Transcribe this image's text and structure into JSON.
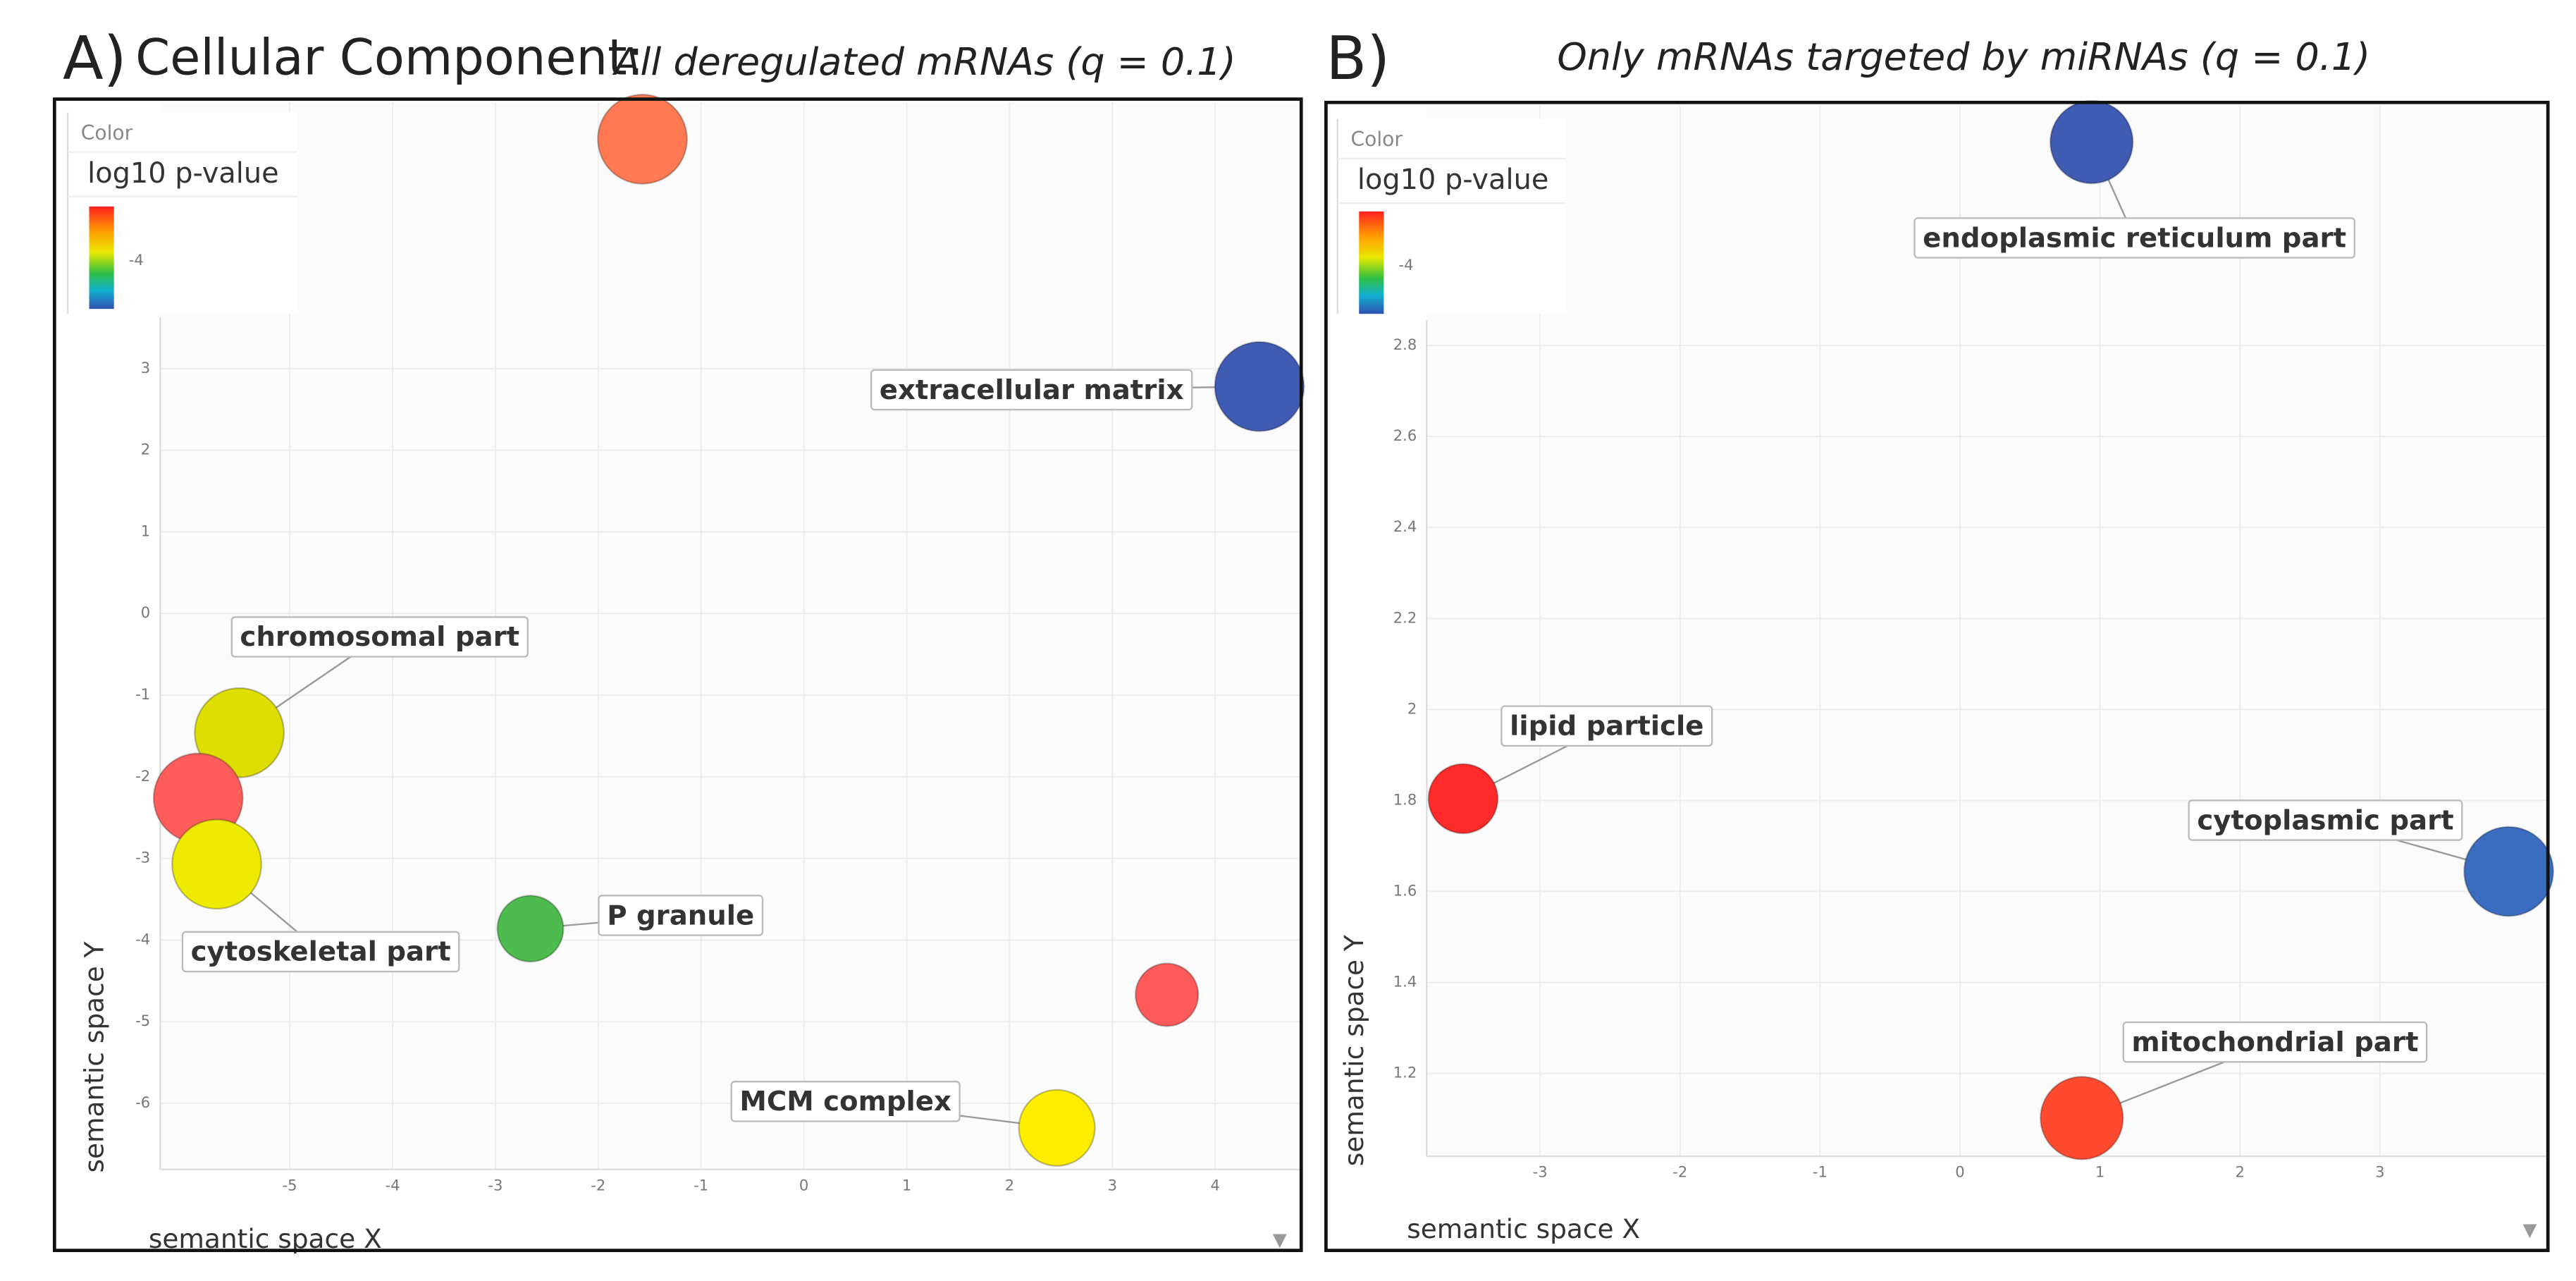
{
  "chart_data": [
    {
      "type": "scatter",
      "panel": "A)",
      "title": "Cellular Component:",
      "subtitle": "All deregulated mRNAs (q = 0.1)",
      "xlabel": "semantic space X",
      "ylabel": "semantic space Y",
      "legend": {
        "title": "Color",
        "label": "log10 p-value",
        "ticks": [
          -4
        ]
      },
      "x": [
        -1.57,
        4.43,
        -5.49,
        -5.89,
        -5.71,
        -2.66,
        3.53,
        2.46
      ],
      "values": [
        5.81,
        2.78,
        -1.46,
        -2.26,
        -3.07,
        -3.86,
        -4.67,
        -6.3
      ],
      "labels": [
        null,
        "extracellular matrix",
        "chromosomal part",
        null,
        "cytoskeletal part",
        "P granule",
        null,
        "MCM complex"
      ],
      "colors": [
        "#ff7a52",
        "#3f5bb3",
        "#dede00",
        "#ff5c5c",
        "#eeea00",
        "#4dbb4d",
        "#ff5a5a",
        "#ffee00"
      ],
      "xlim": [
        -6.26,
        4.82
      ],
      "ylim": [
        -6.81,
        6.26
      ],
      "xticks": [
        -5,
        -4,
        -3,
        -2,
        -1,
        0,
        1,
        2,
        3,
        4
      ],
      "yticks": [
        3,
        2,
        1,
        0,
        -1,
        -2,
        -3,
        -4,
        -5,
        -6
      ],
      "grid": true
    },
    {
      "type": "scatter",
      "panel": "B)",
      "subtitle": "Only mRNAs targeted by miRNAs (q = 0.1)",
      "xlabel": "semantic space X",
      "ylabel": "semantic space Y",
      "legend": {
        "title": "Color",
        "label": "log10 p-value",
        "ticks": [
          -4
        ]
      },
      "x": [
        0.94,
        -3.55,
        3.92,
        0.87
      ],
      "values": [
        3.247,
        1.804,
        1.644,
        1.102
      ],
      "labels": [
        "endoplasmic reticulum part",
        "lipid particle",
        "cytoplasmic part",
        "mitochondrial part"
      ],
      "colors": [
        "#3f5bb3",
        "#ff2a2a",
        "#3a6cc0",
        "#ff4a30"
      ],
      "xlim": [
        -3.81,
        4.2
      ],
      "ylim": [
        1.018,
        3.327
      ],
      "xticks": [
        -3,
        -2,
        -1,
        0,
        1,
        2,
        3
      ],
      "yticks": [
        2.8,
        2.6,
        2.4,
        2.2,
        2,
        1.8,
        1.6,
        1.4,
        1.2
      ],
      "grid": true
    }
  ]
}
